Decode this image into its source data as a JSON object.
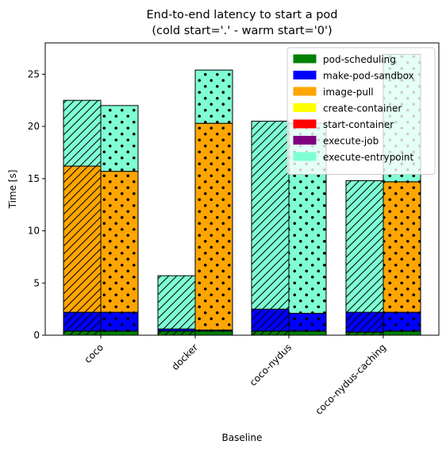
{
  "chart_data": {
    "type": "bar",
    "stacked": true,
    "title_line1": "End-to-end latency to start a pod",
    "title_line2": "(cold start='.' - warm start='0')",
    "xlabel": "Baseline",
    "ylabel": "Time [s]",
    "ylim": [
      0,
      28
    ],
    "yticks": [
      0,
      5,
      10,
      15,
      20,
      25
    ],
    "grid": false,
    "legend_position": "top-right",
    "categories": [
      "coco",
      "docker",
      "coco-nydus",
      "coco-nydus-caching"
    ],
    "start_modes": [
      {
        "mode": "warm",
        "hatch": "diagonal",
        "position": "left"
      },
      {
        "mode": "cold",
        "hatch": "dots",
        "position": "right"
      }
    ],
    "series": [
      {
        "name": "pod-scheduling",
        "color": "#008000",
        "warm": [
          0.4,
          0.4,
          0.4,
          0.3
        ],
        "cold": [
          0.4,
          0.4,
          0.4,
          0.4
        ]
      },
      {
        "name": "make-pod-sandbox",
        "color": "#0000ff",
        "warm": [
          1.8,
          0.2,
          2.1,
          1.9
        ],
        "cold": [
          1.8,
          0.1,
          1.7,
          1.8
        ]
      },
      {
        "name": "image-pull",
        "color": "#ffa500",
        "warm": [
          14.0,
          0.0,
          0.0,
          0.0
        ],
        "cold": [
          13.5,
          19.8,
          0.0,
          12.5
        ]
      },
      {
        "name": "create-container",
        "color": "#ffff00",
        "warm": [
          0,
          0,
          0,
          0
        ],
        "cold": [
          0,
          0,
          0,
          0
        ]
      },
      {
        "name": "start-container",
        "color": "#ff0000",
        "warm": [
          0,
          0,
          0,
          0
        ],
        "cold": [
          0,
          0,
          0,
          0
        ]
      },
      {
        "name": "execute-job",
        "color": "#800080",
        "warm": [
          0,
          0,
          0,
          0
        ],
        "cold": [
          0,
          0,
          0,
          0
        ]
      },
      {
        "name": "execute-entrypoint",
        "color": "#7fffd4",
        "warm": [
          6.3,
          5.1,
          18.0,
          12.6
        ],
        "cold": [
          6.3,
          5.1,
          18.2,
          12.2
        ]
      }
    ]
  }
}
